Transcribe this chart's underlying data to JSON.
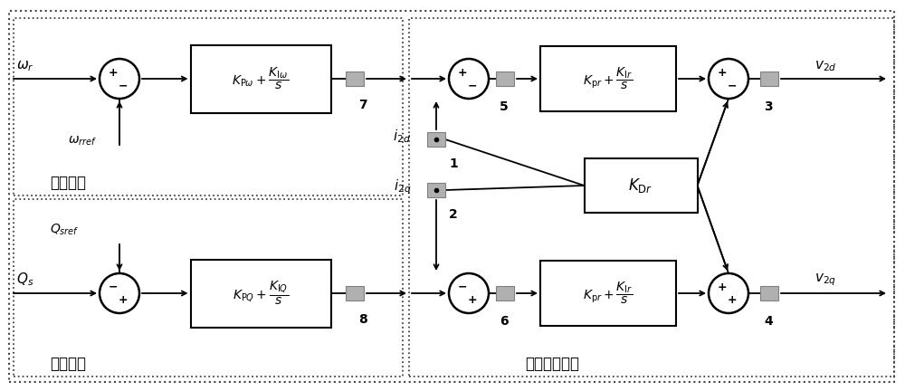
{
  "bg_color": "#ffffff",
  "box_fill": "#ffffff",
  "box_edge": "#000000",
  "circle_edge": "#000000",
  "arrow_color": "#000000",
  "filter_fill": "#b0b0b0",
  "filter_edge": "#808080",
  "text_color": "#000000",
  "labels": {
    "omega_r": "$\\omega_r$",
    "omega_rref": "$\\omega_{rref}$",
    "Q_sref": "$Q_{sref}$",
    "Q_s": "$Q_s$",
    "i_2d": "$i_{2d}$",
    "i_2q": "$i_{2q}$",
    "v_2d": "$v_{2d}$",
    "v_2q": "$v_{2q}$",
    "zhuansu": "转速控制",
    "wugong": "无功控制",
    "dianliu": "电流跟踪控制",
    "box1": "$K_{\\mathrm{P}\\omega}+\\dfrac{K_{\\mathrm{I}\\omega}}{s}$",
    "box2": "$K_{\\mathrm{P}Q}+\\dfrac{K_{\\mathrm{I}Q}}{s}$",
    "box3": "$K_{\\mathrm{p}r}+\\dfrac{K_{\\mathrm{I}r}}{s}$",
    "box4": "$K_{\\mathrm{p}r}+\\dfrac{K_{\\mathrm{I}r}}{s}$",
    "box5": "$K_{\\mathrm{D}r}$",
    "node7": "7",
    "node8": "8",
    "node5": "5",
    "node6": "6",
    "node3": "3",
    "node4": "4",
    "node1": "1",
    "node2": "2"
  }
}
